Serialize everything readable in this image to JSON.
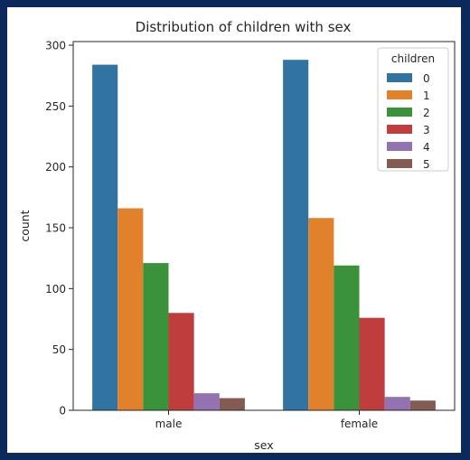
{
  "chart_data": {
    "type": "bar",
    "title": "Distribution of children  with sex",
    "xlabel": "sex",
    "ylabel": "count",
    "categories": [
      "male",
      "female"
    ],
    "ylim": [
      0,
      303
    ],
    "yticks": [
      0,
      50,
      100,
      150,
      200,
      250,
      300
    ],
    "legend": {
      "title": "children",
      "placement": "top-right"
    },
    "series": [
      {
        "name": "0",
        "color": "#3274a1",
        "values": [
          284,
          288
        ]
      },
      {
        "name": "1",
        "color": "#e1812c",
        "values": [
          166,
          158
        ]
      },
      {
        "name": "2",
        "color": "#3a923a",
        "values": [
          121,
          119
        ]
      },
      {
        "name": "3",
        "color": "#c03d3e",
        "values": [
          80,
          76
        ]
      },
      {
        "name": "4",
        "color": "#9372b2",
        "values": [
          14,
          11
        ]
      },
      {
        "name": "5",
        "color": "#845b53",
        "values": [
          10,
          8
        ]
      }
    ]
  }
}
